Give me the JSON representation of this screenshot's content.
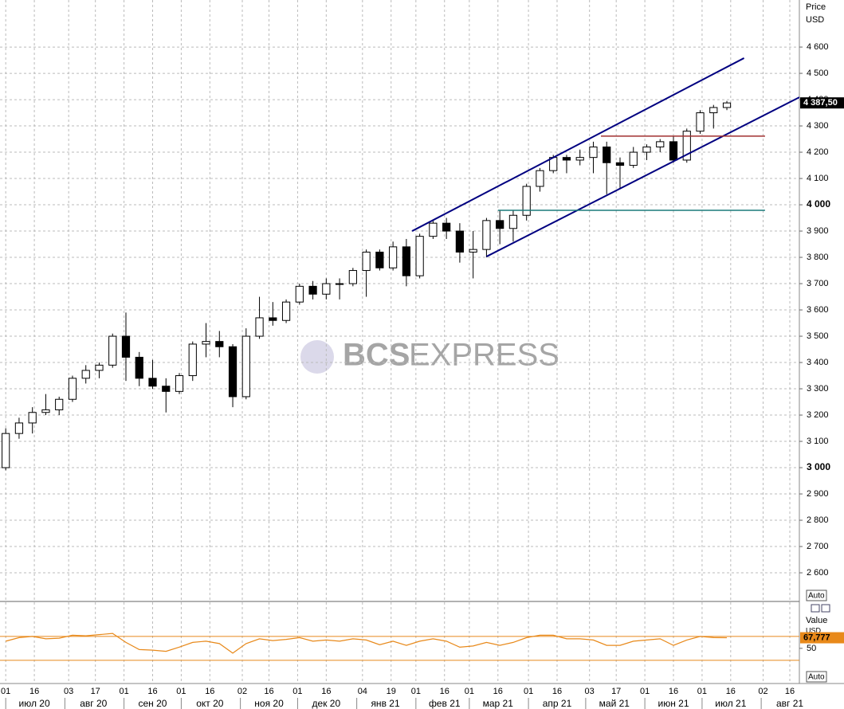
{
  "chart_data": [
    {
      "type": "candlestick",
      "axis_title": "Price",
      "axis_unit": "USD",
      "auto_button": "Auto",
      "watermark": [
        "BCS",
        "EXPRESS"
      ],
      "x": [
        "2020-06-29",
        "2020-07-06",
        "2020-07-13",
        "2020-07-20",
        "2020-07-27",
        "2020-08-03",
        "2020-08-10",
        "2020-08-17",
        "2020-08-24",
        "2020-08-31",
        "2020-09-07",
        "2020-09-14",
        "2020-09-21",
        "2020-09-28",
        "2020-10-05",
        "2020-10-12",
        "2020-10-19",
        "2020-10-26",
        "2020-11-02",
        "2020-11-09",
        "2020-11-16",
        "2020-11-23",
        "2020-11-30",
        "2020-12-07",
        "2020-12-14",
        "2020-12-21",
        "2020-12-28",
        "2021-01-04",
        "2021-01-11",
        "2021-01-18",
        "2021-01-25",
        "2021-02-01",
        "2021-02-08",
        "2021-02-15",
        "2021-02-22",
        "2021-03-01",
        "2021-03-08",
        "2021-03-15",
        "2021-03-22",
        "2021-03-29",
        "2021-04-05",
        "2021-04-12",
        "2021-04-19",
        "2021-04-26",
        "2021-05-03",
        "2021-05-10",
        "2021-05-17",
        "2021-05-24",
        "2021-05-31",
        "2021-06-07",
        "2021-06-14",
        "2021-06-21",
        "2021-06-28",
        "2021-07-05",
        "2021-07-12"
      ],
      "open": [
        3000,
        3130,
        3170,
        3210,
        3220,
        3260,
        3340,
        3370,
        3390,
        3500,
        3420,
        3340,
        3310,
        3290,
        3350,
        3470,
        3480,
        3460,
        3270,
        3500,
        3570,
        3560,
        3630,
        3690,
        3660,
        3700,
        3700,
        3750,
        3820,
        3760,
        3840,
        3730,
        3880,
        3930,
        3900,
        3820,
        3830,
        3940,
        3910,
        3960,
        4070,
        4130,
        4180,
        4170,
        4180,
        4220,
        4160,
        4150,
        4200,
        4220,
        4240,
        4170,
        4280,
        4350,
        4370
      ],
      "high": [
        3150,
        3190,
        3230,
        3280,
        3270,
        3350,
        3390,
        3400,
        3510,
        3590,
        3440,
        3410,
        3340,
        3360,
        3480,
        3550,
        3520,
        3470,
        3530,
        3650,
        3630,
        3640,
        3700,
        3710,
        3720,
        3720,
        3760,
        3830,
        3830,
        3860,
        3870,
        3890,
        3940,
        3950,
        3930,
        3900,
        3950,
        3980,
        3980,
        4080,
        4140,
        4190,
        4190,
        4210,
        4240,
        4240,
        4180,
        4220,
        4230,
        4250,
        4260,
        4290,
        4360,
        4380,
        4395
      ],
      "low": [
        2990,
        3110,
        3130,
        3200,
        3200,
        3250,
        3320,
        3340,
        3380,
        3330,
        3310,
        3300,
        3210,
        3280,
        3330,
        3420,
        3420,
        3230,
        3260,
        3490,
        3540,
        3550,
        3620,
        3640,
        3640,
        3640,
        3690,
        3650,
        3750,
        3750,
        3690,
        3720,
        3870,
        3870,
        3780,
        3720,
        3800,
        3850,
        3860,
        3940,
        4050,
        4120,
        4120,
        4150,
        4120,
        4040,
        4060,
        4140,
        4170,
        4200,
        4160,
        4160,
        4270,
        4290,
        4360
      ],
      "close": [
        3130,
        3170,
        3210,
        3220,
        3260,
        3340,
        3370,
        3390,
        3500,
        3420,
        3340,
        3310,
        3290,
        3350,
        3470,
        3480,
        3460,
        3270,
        3500,
        3570,
        3560,
        3630,
        3690,
        3660,
        3700,
        3700,
        3750,
        3820,
        3760,
        3840,
        3730,
        3880,
        3930,
        3900,
        3820,
        3830,
        3940,
        3910,
        3960,
        4070,
        4130,
        4180,
        4170,
        4180,
        4220,
        4160,
        4150,
        4200,
        4220,
        4240,
        4170,
        4280,
        4350,
        4370,
        4387.5
      ],
      "last_value_label": "4 387,50",
      "xlim": [
        "2020-06-28",
        "2021-08-21"
      ],
      "xticks": [
        {
          "value": "2020-07-01",
          "label": "01"
        },
        {
          "value": "2020-07-16",
          "label": "16"
        },
        {
          "value": "2020-08-03",
          "label": "03"
        },
        {
          "value": "2020-08-17",
          "label": "17"
        },
        {
          "value": "2020-09-01",
          "label": "01"
        },
        {
          "value": "2020-09-16",
          "label": "16"
        },
        {
          "value": "2020-10-01",
          "label": "01"
        },
        {
          "value": "2020-10-16",
          "label": "16"
        },
        {
          "value": "2020-11-02",
          "label": "02"
        },
        {
          "value": "2020-11-16",
          "label": "16"
        },
        {
          "value": "2020-12-01",
          "label": "01"
        },
        {
          "value": "2020-12-16",
          "label": "16"
        },
        {
          "value": "2021-01-04",
          "label": "04"
        },
        {
          "value": "2021-01-19",
          "label": "19"
        },
        {
          "value": "2021-02-01",
          "label": "01"
        },
        {
          "value": "2021-02-16",
          "label": "16"
        },
        {
          "value": "2021-03-01",
          "label": "01"
        },
        {
          "value": "2021-03-16",
          "label": "16"
        },
        {
          "value": "2021-04-01",
          "label": "01"
        },
        {
          "value": "2021-04-16",
          "label": "16"
        },
        {
          "value": "2021-05-03",
          "label": "03"
        },
        {
          "value": "2021-05-17",
          "label": "17"
        },
        {
          "value": "2021-06-01",
          "label": "01"
        },
        {
          "value": "2021-06-16",
          "label": "16"
        },
        {
          "value": "2021-07-01",
          "label": "01"
        },
        {
          "value": "2021-07-16",
          "label": "16"
        },
        {
          "value": "2021-08-02",
          "label": "02"
        },
        {
          "value": "2021-08-16",
          "label": "16"
        }
      ],
      "months": [
        {
          "value": "2020-07",
          "label": "июл 20"
        },
        {
          "value": "2020-08",
          "label": "авг 20"
        },
        {
          "value": "2020-09",
          "label": "сен 20"
        },
        {
          "value": "2020-10",
          "label": "окт 20"
        },
        {
          "value": "2020-11",
          "label": "ноя 20"
        },
        {
          "value": "2020-12",
          "label": "дек 20"
        },
        {
          "value": "2021-01",
          "label": "янв 21"
        },
        {
          "value": "2021-02",
          "label": "фев 21"
        },
        {
          "value": "2021-03",
          "label": "мар 21"
        },
        {
          "value": "2021-04",
          "label": "апр 21"
        },
        {
          "value": "2021-05",
          "label": "май 21"
        },
        {
          "value": "2021-06",
          "label": "июн 21"
        },
        {
          "value": "2021-07",
          "label": "июл 21"
        },
        {
          "value": "2021-08",
          "label": "авг 21"
        }
      ],
      "ylim": [
        2491,
        4779
      ],
      "yticks": [
        {
          "value": 2600,
          "label": "2 600"
        },
        {
          "value": 2700,
          "label": "2 700"
        },
        {
          "value": 2800,
          "label": "2 800"
        },
        {
          "value": 2900,
          "label": "2 900"
        },
        {
          "value": 3000,
          "label": "3 000"
        },
        {
          "value": 3100,
          "label": "3 100"
        },
        {
          "value": 3200,
          "label": "3 200"
        },
        {
          "value": 3300,
          "label": "3 300"
        },
        {
          "value": 3400,
          "label": "3 400"
        },
        {
          "value": 3500,
          "label": "3 500"
        },
        {
          "value": 3600,
          "label": "3 600"
        },
        {
          "value": 3700,
          "label": "3 700"
        },
        {
          "value": 3800,
          "label": "3 800"
        },
        {
          "value": 3900,
          "label": "3 900"
        },
        {
          "value": 4000,
          "label": "4 000"
        },
        {
          "value": 4100,
          "label": "4 100"
        },
        {
          "value": 4200,
          "label": "4 200"
        },
        {
          "value": 4300,
          "label": "4 300"
        },
        {
          "value": 4400,
          "label": "4 400"
        },
        {
          "value": 4500,
          "label": "4 500"
        },
        {
          "value": 4600,
          "label": "4 600"
        }
      ],
      "grid": true,
      "trendlines": [
        {
          "color": "#000080",
          "x": [
            "2021-01-30",
            "2021-07-23"
          ],
          "y": [
            3900,
            4558
          ]
        },
        {
          "color": "#000080",
          "x": [
            "2021-03-10",
            "2021-08-21"
          ],
          "y": [
            3803,
            4409
          ]
        },
        {
          "color": "#a03030",
          "x": [
            "2021-05-09",
            "2021-08-03"
          ],
          "y": [
            4261,
            4261
          ]
        },
        {
          "color": "#1a7a7a",
          "x": [
            "2021-03-16",
            "2021-08-03"
          ],
          "y": [
            3979,
            3979
          ]
        }
      ]
    },
    {
      "type": "line",
      "axis_title": "Value",
      "axis_unit": "USD",
      "auto_button": "Auto",
      "color": "#e8891a",
      "values": [
        62,
        68,
        70,
        66,
        67,
        72,
        71,
        73,
        75,
        60,
        48,
        47,
        45,
        52,
        60,
        62,
        58,
        42,
        58,
        66,
        63,
        65,
        68,
        62,
        64,
        62,
        66,
        64,
        56,
        62,
        55,
        62,
        66,
        62,
        52,
        54,
        60,
        55,
        60,
        68,
        72,
        72,
        66,
        66,
        64,
        55,
        55,
        62,
        64,
        66,
        55,
        64,
        70,
        68,
        67.777
      ],
      "last_value_label": "67,777",
      "ylim": [
        -9,
        126
      ],
      "yticks": [
        50
      ],
      "levels": [
        70,
        30
      ]
    }
  ]
}
